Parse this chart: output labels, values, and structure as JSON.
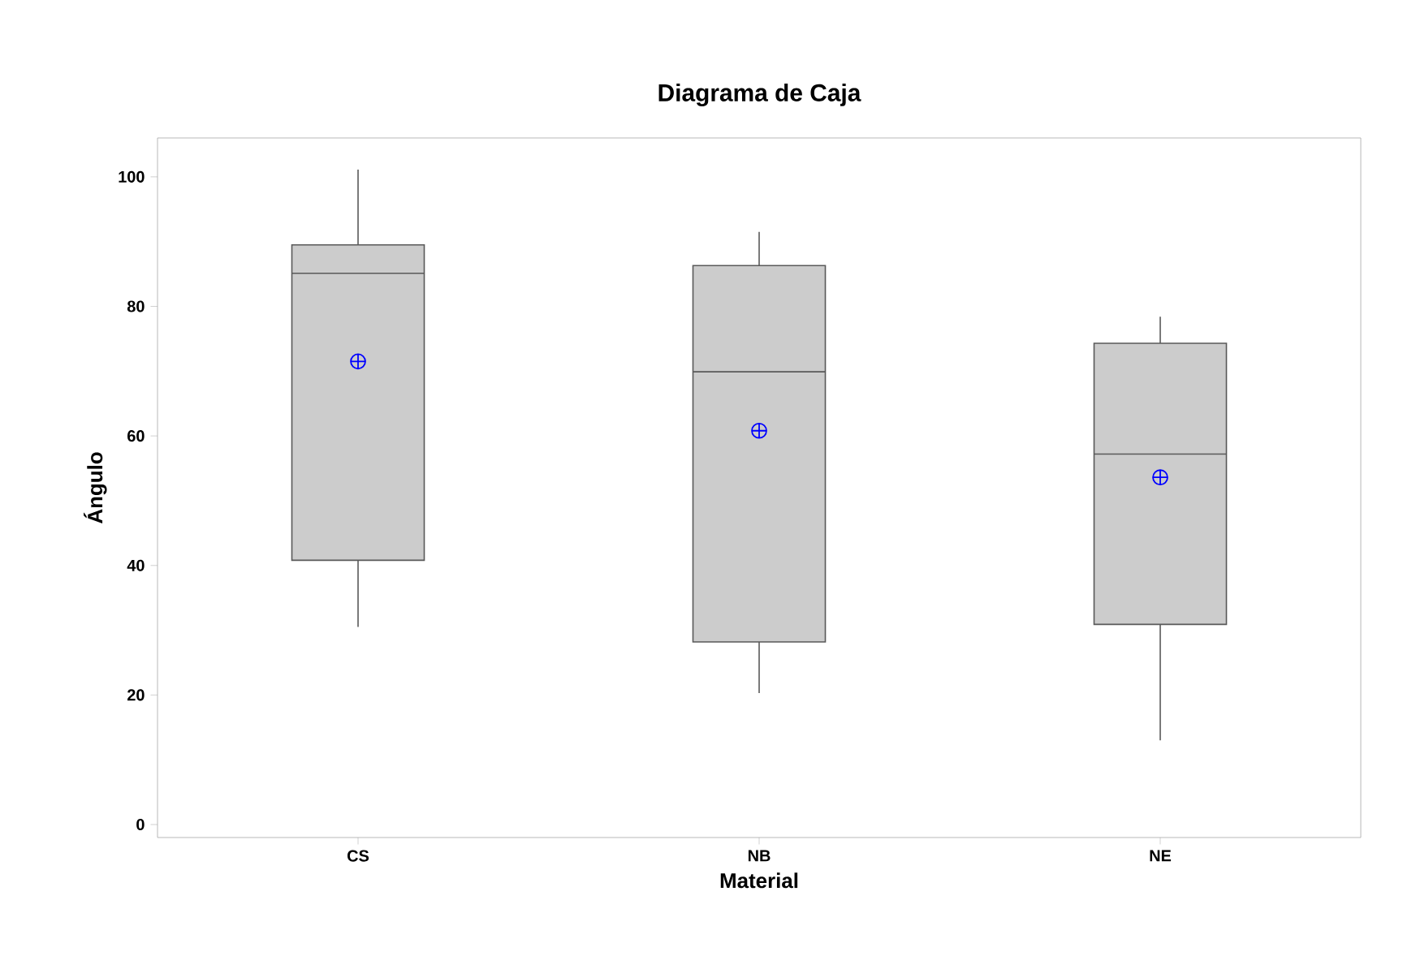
{
  "chart_data": {
    "type": "box",
    "title": "Diagrama de Caja",
    "xlabel": "Material",
    "ylabel": "Ángulo",
    "categories": [
      "CS",
      "NB",
      "NE"
    ],
    "ylim": [
      -2,
      106
    ],
    "yticks": [
      0,
      20,
      40,
      60,
      80,
      100
    ],
    "grid": false,
    "series": [
      {
        "color": "#cccccc",
        "boxes": [
          {
            "low": 30.5,
            "q1": 40.8,
            "median": 85.1,
            "q3": 89.5,
            "high": 101.1,
            "mean": 71.5
          },
          {
            "low": 20.3,
            "q1": 28.2,
            "median": 69.9,
            "q3": 86.3,
            "high": 91.5,
            "mean": 60.8
          },
          {
            "low": 13.0,
            "q1": 30.9,
            "median": 57.2,
            "q3": 74.3,
            "high": 78.4,
            "mean": 53.6
          }
        ]
      }
    ]
  }
}
